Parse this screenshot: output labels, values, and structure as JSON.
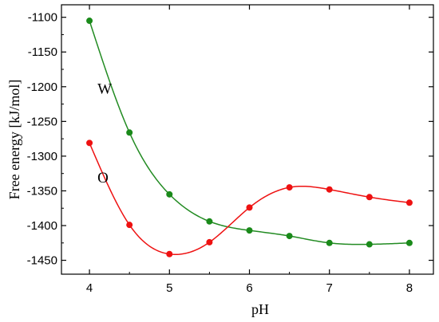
{
  "chart_data": {
    "type": "scatter",
    "xlabel": "pH",
    "ylabel": "Free energy [kJ/mol]",
    "xlim": [
      3.65,
      8.3
    ],
    "ylim": [
      -1470,
      -1082
    ],
    "xticks": [
      4,
      5,
      6,
      7,
      8
    ],
    "xtick_labels": [
      "4",
      "5",
      "6",
      "7",
      "8"
    ],
    "yticks": [
      -1100,
      -1150,
      -1200,
      -1250,
      -1300,
      -1350,
      -1400,
      -1450
    ],
    "ytick_labels": [
      "-1100",
      "-1150",
      "-1200",
      "-1250",
      "-1300",
      "-1350",
      "-1400",
      "-1450"
    ],
    "grid": false,
    "series": [
      {
        "name": "W",
        "color": "#1a8a1a",
        "line_color": "#228b22",
        "x": [
          4.0,
          4.5,
          5.0,
          5.5,
          6.0,
          6.5,
          7.0,
          7.5,
          8.0
        ],
        "y": [
          -1105,
          -1266,
          -1355,
          -1394,
          -1407,
          -1415,
          -1425,
          -1427,
          -1425
        ]
      },
      {
        "name": "O",
        "color": "#ee1111",
        "line_color": "#ee1111",
        "x": [
          4.0,
          4.5,
          5.0,
          5.5,
          6.0,
          6.5,
          7.0,
          7.5,
          8.0
        ],
        "y": [
          -1281,
          -1399,
          -1441,
          -1424,
          -1374,
          -1345,
          -1348,
          -1359,
          -1367
        ]
      }
    ],
    "annotations": [
      {
        "text": "W",
        "x": 4.1,
        "y": -1210
      },
      {
        "text": "O",
        "x": 4.1,
        "y": -1338
      }
    ]
  }
}
